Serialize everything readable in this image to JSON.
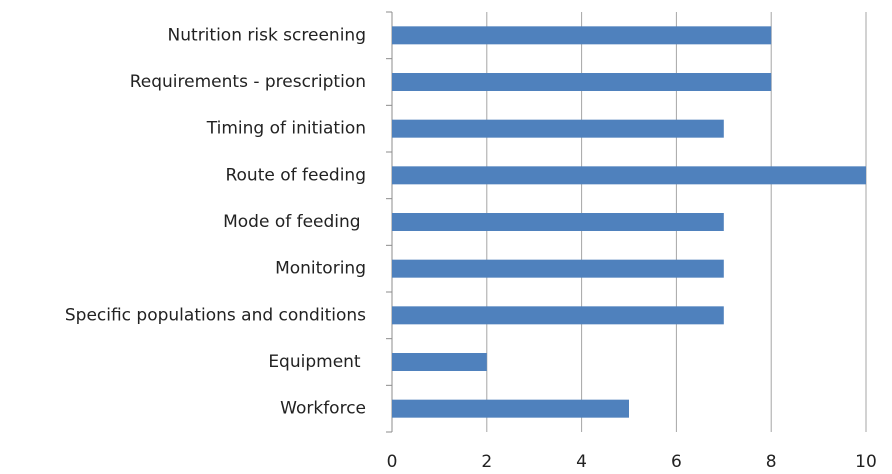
{
  "chart_data": {
    "type": "bar",
    "categories": [
      "Nutrition risk screening",
      "Requirements - prescription",
      "Timing of initiation",
      "Route of feeding",
      "Mode of feeding ",
      "Monitoring",
      "Specific populations and conditions",
      "Equipment ",
      "Workforce"
    ],
    "values": [
      8,
      8,
      7,
      10,
      7,
      7,
      7,
      2,
      5
    ],
    "color": "#4f81bd",
    "xlim": [
      0,
      10
    ],
    "xticks": [
      0,
      2,
      4,
      6,
      8,
      10
    ],
    "grid": true
  }
}
